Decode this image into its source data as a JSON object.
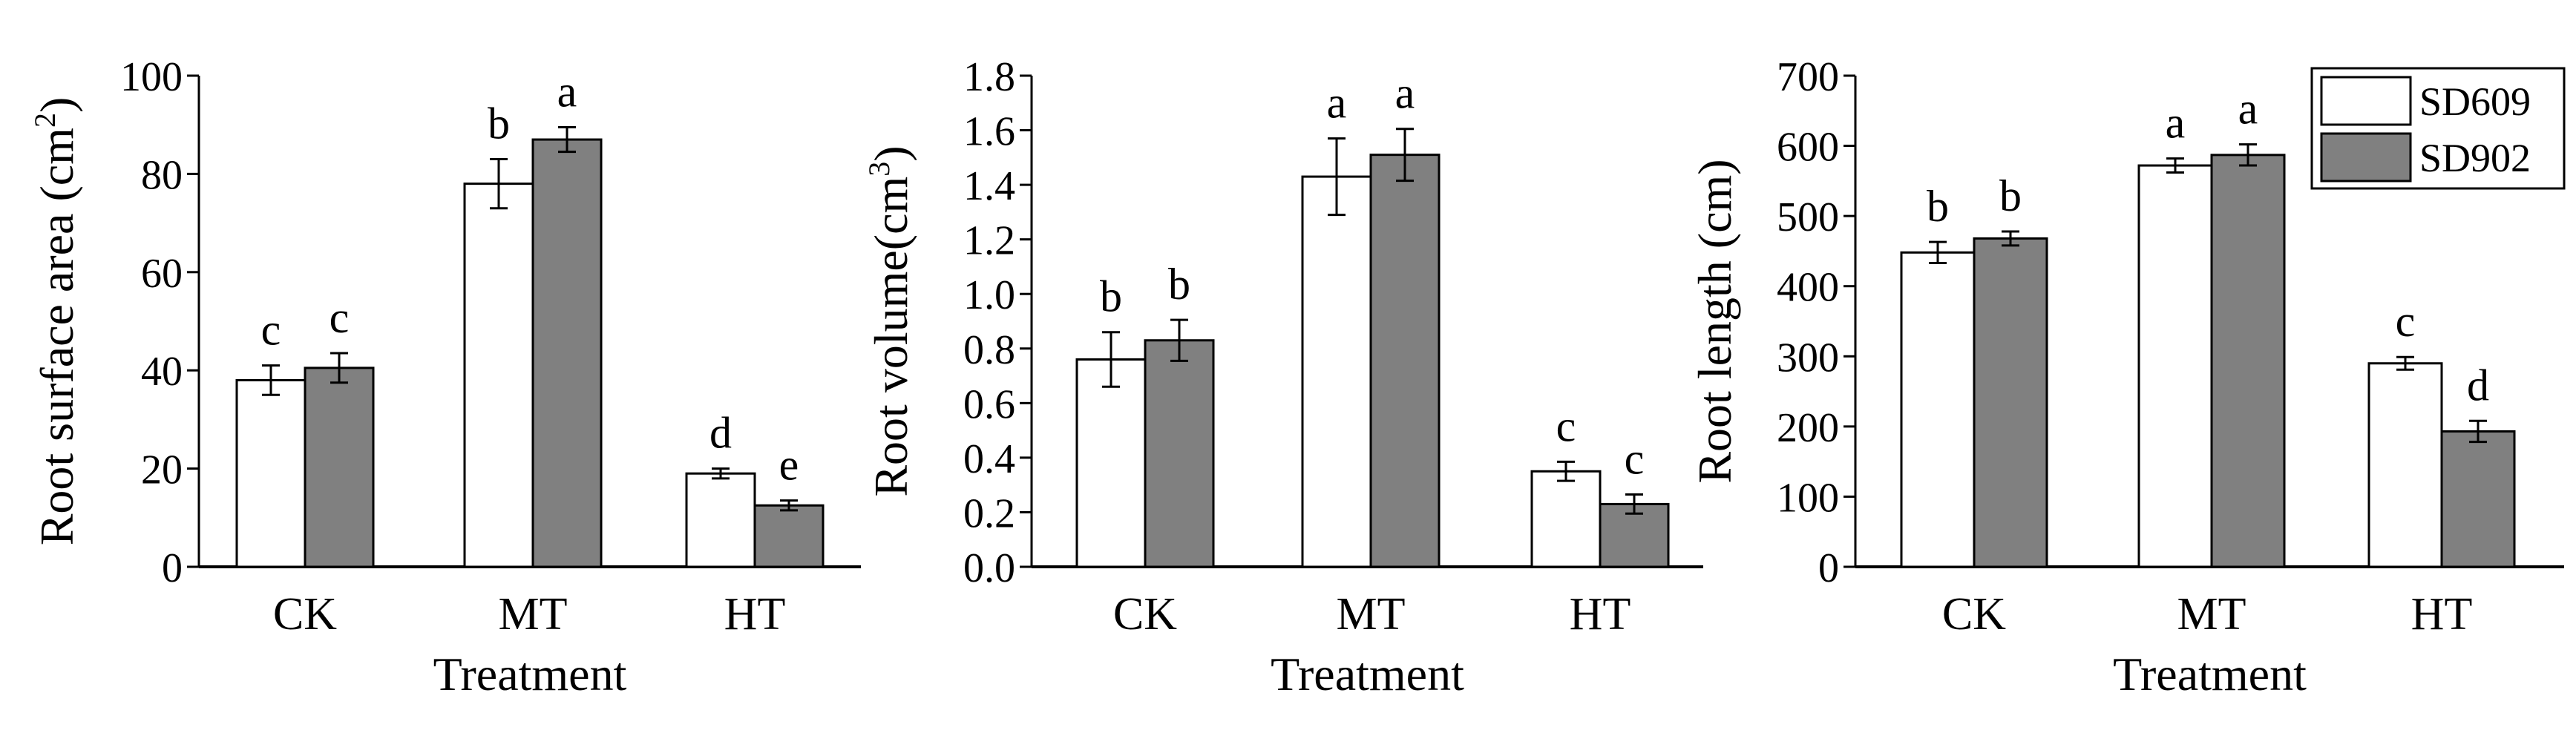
{
  "colors": {
    "series_fill": [
      "#ffffff",
      "#808080"
    ],
    "stroke": "#000000"
  },
  "legend": {
    "entries": [
      "SD609",
      "SD902"
    ]
  },
  "chart_data": [
    {
      "type": "bar",
      "categories": [
        "CK",
        "MT",
        "HT"
      ],
      "series": [
        {
          "name": "SD609",
          "values": [
            38,
            78,
            19
          ],
          "errors": [
            3,
            5,
            1
          ],
          "letters": [
            "c",
            "b",
            "d"
          ]
        },
        {
          "name": "SD902",
          "values": [
            40.5,
            87,
            12.5
          ],
          "errors": [
            3,
            2.5,
            1
          ],
          "letters": [
            "c",
            "a",
            "e"
          ]
        }
      ],
      "xlabel": "Treatment",
      "ylabel": "Root surface area (cm",
      "ylabel_sup": "2",
      "ylabel_end": ")",
      "ylim": [
        0,
        100
      ],
      "yticks": [
        0,
        20,
        40,
        60,
        80,
        100
      ],
      "ytick_labels": [
        "0",
        "20",
        "40",
        "60",
        "80",
        "100"
      ]
    },
    {
      "type": "bar",
      "categories": [
        "CK",
        "MT",
        "HT"
      ],
      "series": [
        {
          "name": "SD609",
          "values": [
            0.76,
            1.43,
            0.35
          ],
          "errors": [
            0.1,
            0.14,
            0.035
          ],
          "letters": [
            "b",
            "a",
            "c"
          ]
        },
        {
          "name": "SD902",
          "values": [
            0.83,
            1.51,
            0.23
          ],
          "errors": [
            0.075,
            0.095,
            0.035
          ],
          "letters": [
            "b",
            "a",
            "c"
          ]
        }
      ],
      "xlabel": "Treatment",
      "ylabel": "Root volume(cm",
      "ylabel_sup": "3",
      "ylabel_end": ")",
      "ylim": [
        0,
        1.8
      ],
      "yticks": [
        0,
        0.2,
        0.4,
        0.6,
        0.8,
        1.0,
        1.2,
        1.4,
        1.6,
        1.8
      ],
      "ytick_labels": [
        "0.0",
        "0.2",
        "0.4",
        "0.6",
        "0.8",
        "1.0",
        "1.2",
        "1.4",
        "1.6",
        "1.8"
      ]
    },
    {
      "type": "bar",
      "categories": [
        "CK",
        "MT",
        "HT"
      ],
      "series": [
        {
          "name": "SD609",
          "values": [
            448,
            572,
            290
          ],
          "errors": [
            15,
            10,
            9
          ],
          "letters": [
            "b",
            "a",
            "c"
          ]
        },
        {
          "name": "SD902",
          "values": [
            468,
            587,
            193
          ],
          "errors": [
            10,
            15,
            15
          ],
          "letters": [
            "b",
            "a",
            "d"
          ]
        }
      ],
      "xlabel": "Treatment",
      "ylabel": "Root length (cm)",
      "ylabel_sup": "",
      "ylabel_end": "",
      "ylim": [
        0,
        700
      ],
      "yticks": [
        0,
        100,
        200,
        300,
        400,
        500,
        600,
        700
      ],
      "ytick_labels": [
        "0",
        "100",
        "200",
        "300",
        "400",
        "500",
        "600",
        "700"
      ]
    }
  ]
}
